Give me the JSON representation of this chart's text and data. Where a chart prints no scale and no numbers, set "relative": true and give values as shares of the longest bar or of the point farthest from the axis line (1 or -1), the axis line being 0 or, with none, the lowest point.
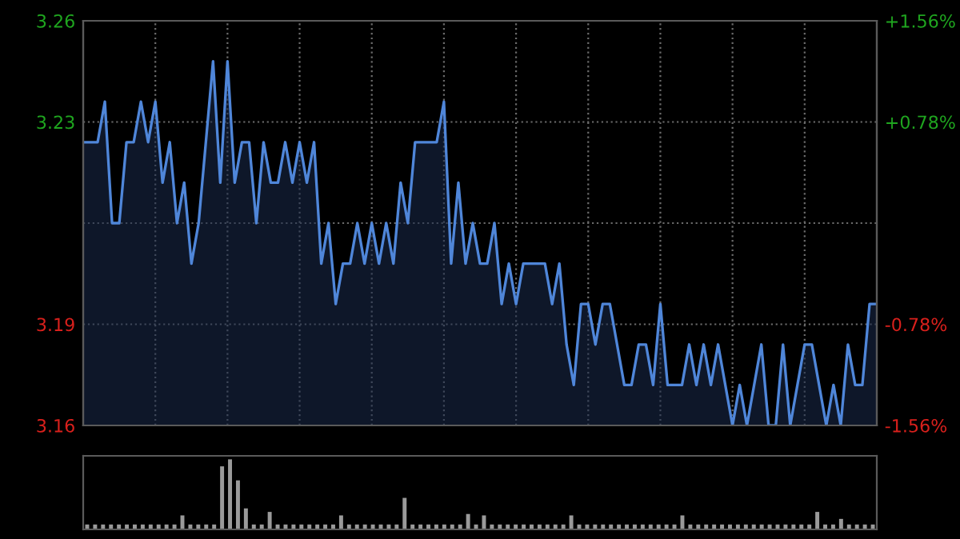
{
  "chart_data": [
    {
      "type": "area",
      "categories": [
        null,
        null,
        null,
        null,
        null,
        null,
        null,
        null,
        null,
        null,
        null,
        null,
        null,
        null,
        null,
        null,
        null,
        null,
        null,
        null,
        null,
        null,
        null,
        null,
        null,
        null,
        null,
        null,
        null,
        null,
        null,
        null,
        null,
        null,
        null,
        null,
        null,
        null,
        null,
        null,
        null,
        null,
        null,
        null,
        null,
        null,
        null,
        null,
        null,
        null,
        null,
        null,
        null,
        null,
        null,
        null,
        null,
        null,
        null,
        null,
        null,
        null,
        null,
        null,
        null,
        null,
        null,
        null,
        null,
        null,
        null,
        null,
        null,
        null,
        null,
        null,
        null,
        null,
        null,
        null,
        null,
        null,
        null,
        null,
        null,
        null,
        null,
        null,
        null,
        null,
        null,
        null,
        null,
        null,
        null,
        null,
        null,
        null,
        null,
        null,
        null,
        null,
        null,
        null,
        null,
        null,
        null,
        null,
        null,
        null,
        null
      ],
      "series": [
        {
          "color": "#4f86d9",
          "values": [
            3.23,
            3.23,
            3.23,
            3.24,
            3.21,
            3.21,
            3.23,
            3.23,
            3.24,
            3.23,
            3.24,
            3.22,
            3.23,
            3.21,
            3.22,
            3.2,
            3.21,
            3.23,
            3.25,
            3.22,
            3.25,
            3.22,
            3.23,
            3.23,
            3.21,
            3.23,
            3.22,
            3.22,
            3.23,
            3.22,
            3.23,
            3.22,
            3.23,
            3.2,
            3.21,
            3.19,
            3.2,
            3.2,
            3.21,
            3.2,
            3.21,
            3.2,
            3.21,
            3.2,
            3.22,
            3.21,
            3.23,
            3.23,
            3.23,
            3.23,
            3.24,
            3.2,
            3.22,
            3.2,
            3.21,
            3.2,
            3.2,
            3.21,
            3.19,
            3.2,
            3.19,
            3.2,
            3.2,
            3.2,
            3.2,
            3.19,
            3.2,
            3.18,
            3.17,
            3.19,
            3.19,
            3.18,
            3.19,
            3.19,
            3.18,
            3.17,
            3.17,
            3.18,
            3.18,
            3.17,
            3.19,
            3.17,
            3.17,
            3.17,
            3.18,
            3.17,
            3.18,
            3.17,
            3.18,
            3.17,
            3.16,
            3.17,
            3.16,
            3.17,
            3.18,
            3.16,
            3.16,
            3.18,
            3.16,
            3.17,
            3.18,
            3.18,
            3.17,
            3.16,
            3.17,
            3.16,
            3.18,
            3.17,
            3.17,
            3.19,
            3.19
          ]
        }
      ],
      "ylim": [
        3.16,
        3.26
      ],
      "yticks": [
        3.16,
        {
          "value": 3.185,
          "label": "3.19"
        },
        {
          "value": 3.21,
          "label": null
        },
        {
          "value": 3.235,
          "label": "3.23"
        },
        3.26
      ],
      "y2lim": [
        -1.56,
        1.56
      ],
      "y2ticks": [
        {
          "value": -1.56,
          "label": "-1.56%"
        },
        {
          "value": -0.78,
          "label": "-0.78%"
        },
        {
          "value": 0,
          "label": null
        },
        {
          "value": 0.78,
          "label": "+0.78%"
        },
        {
          "value": 1.56,
          "label": "+1.56%"
        }
      ],
      "tick_labels": "y",
      "grid": true,
      "line_style": "solid"
    },
    {
      "type": "bar",
      "relative": true,
      "tick_labels": false,
      "categories": [
        null,
        null,
        null,
        null,
        null,
        null,
        null,
        null,
        null,
        null,
        null,
        null,
        null,
        null,
        null,
        null,
        null,
        null,
        null,
        null,
        null,
        null,
        null,
        null,
        null,
        null,
        null,
        null,
        null,
        null,
        null,
        null,
        null,
        null,
        null,
        null,
        null,
        null,
        null,
        null,
        null,
        null,
        null,
        null,
        null,
        null,
        null,
        null,
        null,
        null,
        null,
        null,
        null,
        null,
        null,
        null,
        null,
        null,
        null,
        null,
        null,
        null,
        null,
        null,
        null,
        null,
        null,
        null,
        null,
        null,
        null,
        null,
        null,
        null,
        null,
        null,
        null,
        null,
        null,
        null,
        null,
        null,
        null,
        null,
        null,
        null,
        null,
        null,
        null,
        null,
        null,
        null,
        null,
        null,
        null,
        null,
        null,
        null,
        null,
        null
      ],
      "color": "#9a9a9a",
      "values": [
        0.07,
        0.07,
        0.07,
        0.07,
        0.07,
        0.07,
        0.07,
        0.07,
        0.07,
        0.07,
        0.07,
        0.07,
        0.2,
        0.07,
        0.07,
        0.07,
        0.07,
        0.9,
        1.0,
        0.7,
        0.3,
        0.07,
        0.07,
        0.25,
        0.07,
        0.07,
        0.07,
        0.07,
        0.07,
        0.07,
        0.07,
        0.07,
        0.2,
        0.07,
        0.07,
        0.07,
        0.07,
        0.07,
        0.07,
        0.07,
        0.45,
        0.07,
        0.07,
        0.07,
        0.07,
        0.07,
        0.07,
        0.07,
        0.22,
        0.07,
        0.2,
        0.07,
        0.07,
        0.07,
        0.07,
        0.07,
        0.07,
        0.07,
        0.07,
        0.07,
        0.07,
        0.2,
        0.07,
        0.07,
        0.07,
        0.07,
        0.07,
        0.07,
        0.07,
        0.07,
        0.07,
        0.07,
        0.07,
        0.07,
        0.07,
        0.2,
        0.07,
        0.07,
        0.07,
        0.07,
        0.07,
        0.07,
        0.07,
        0.07,
        0.07,
        0.07,
        0.07,
        0.07,
        0.07,
        0.07,
        0.07,
        0.07,
        0.25,
        0.07,
        0.07,
        0.15,
        0.07,
        0.07,
        0.07,
        0.07
      ]
    }
  ]
}
